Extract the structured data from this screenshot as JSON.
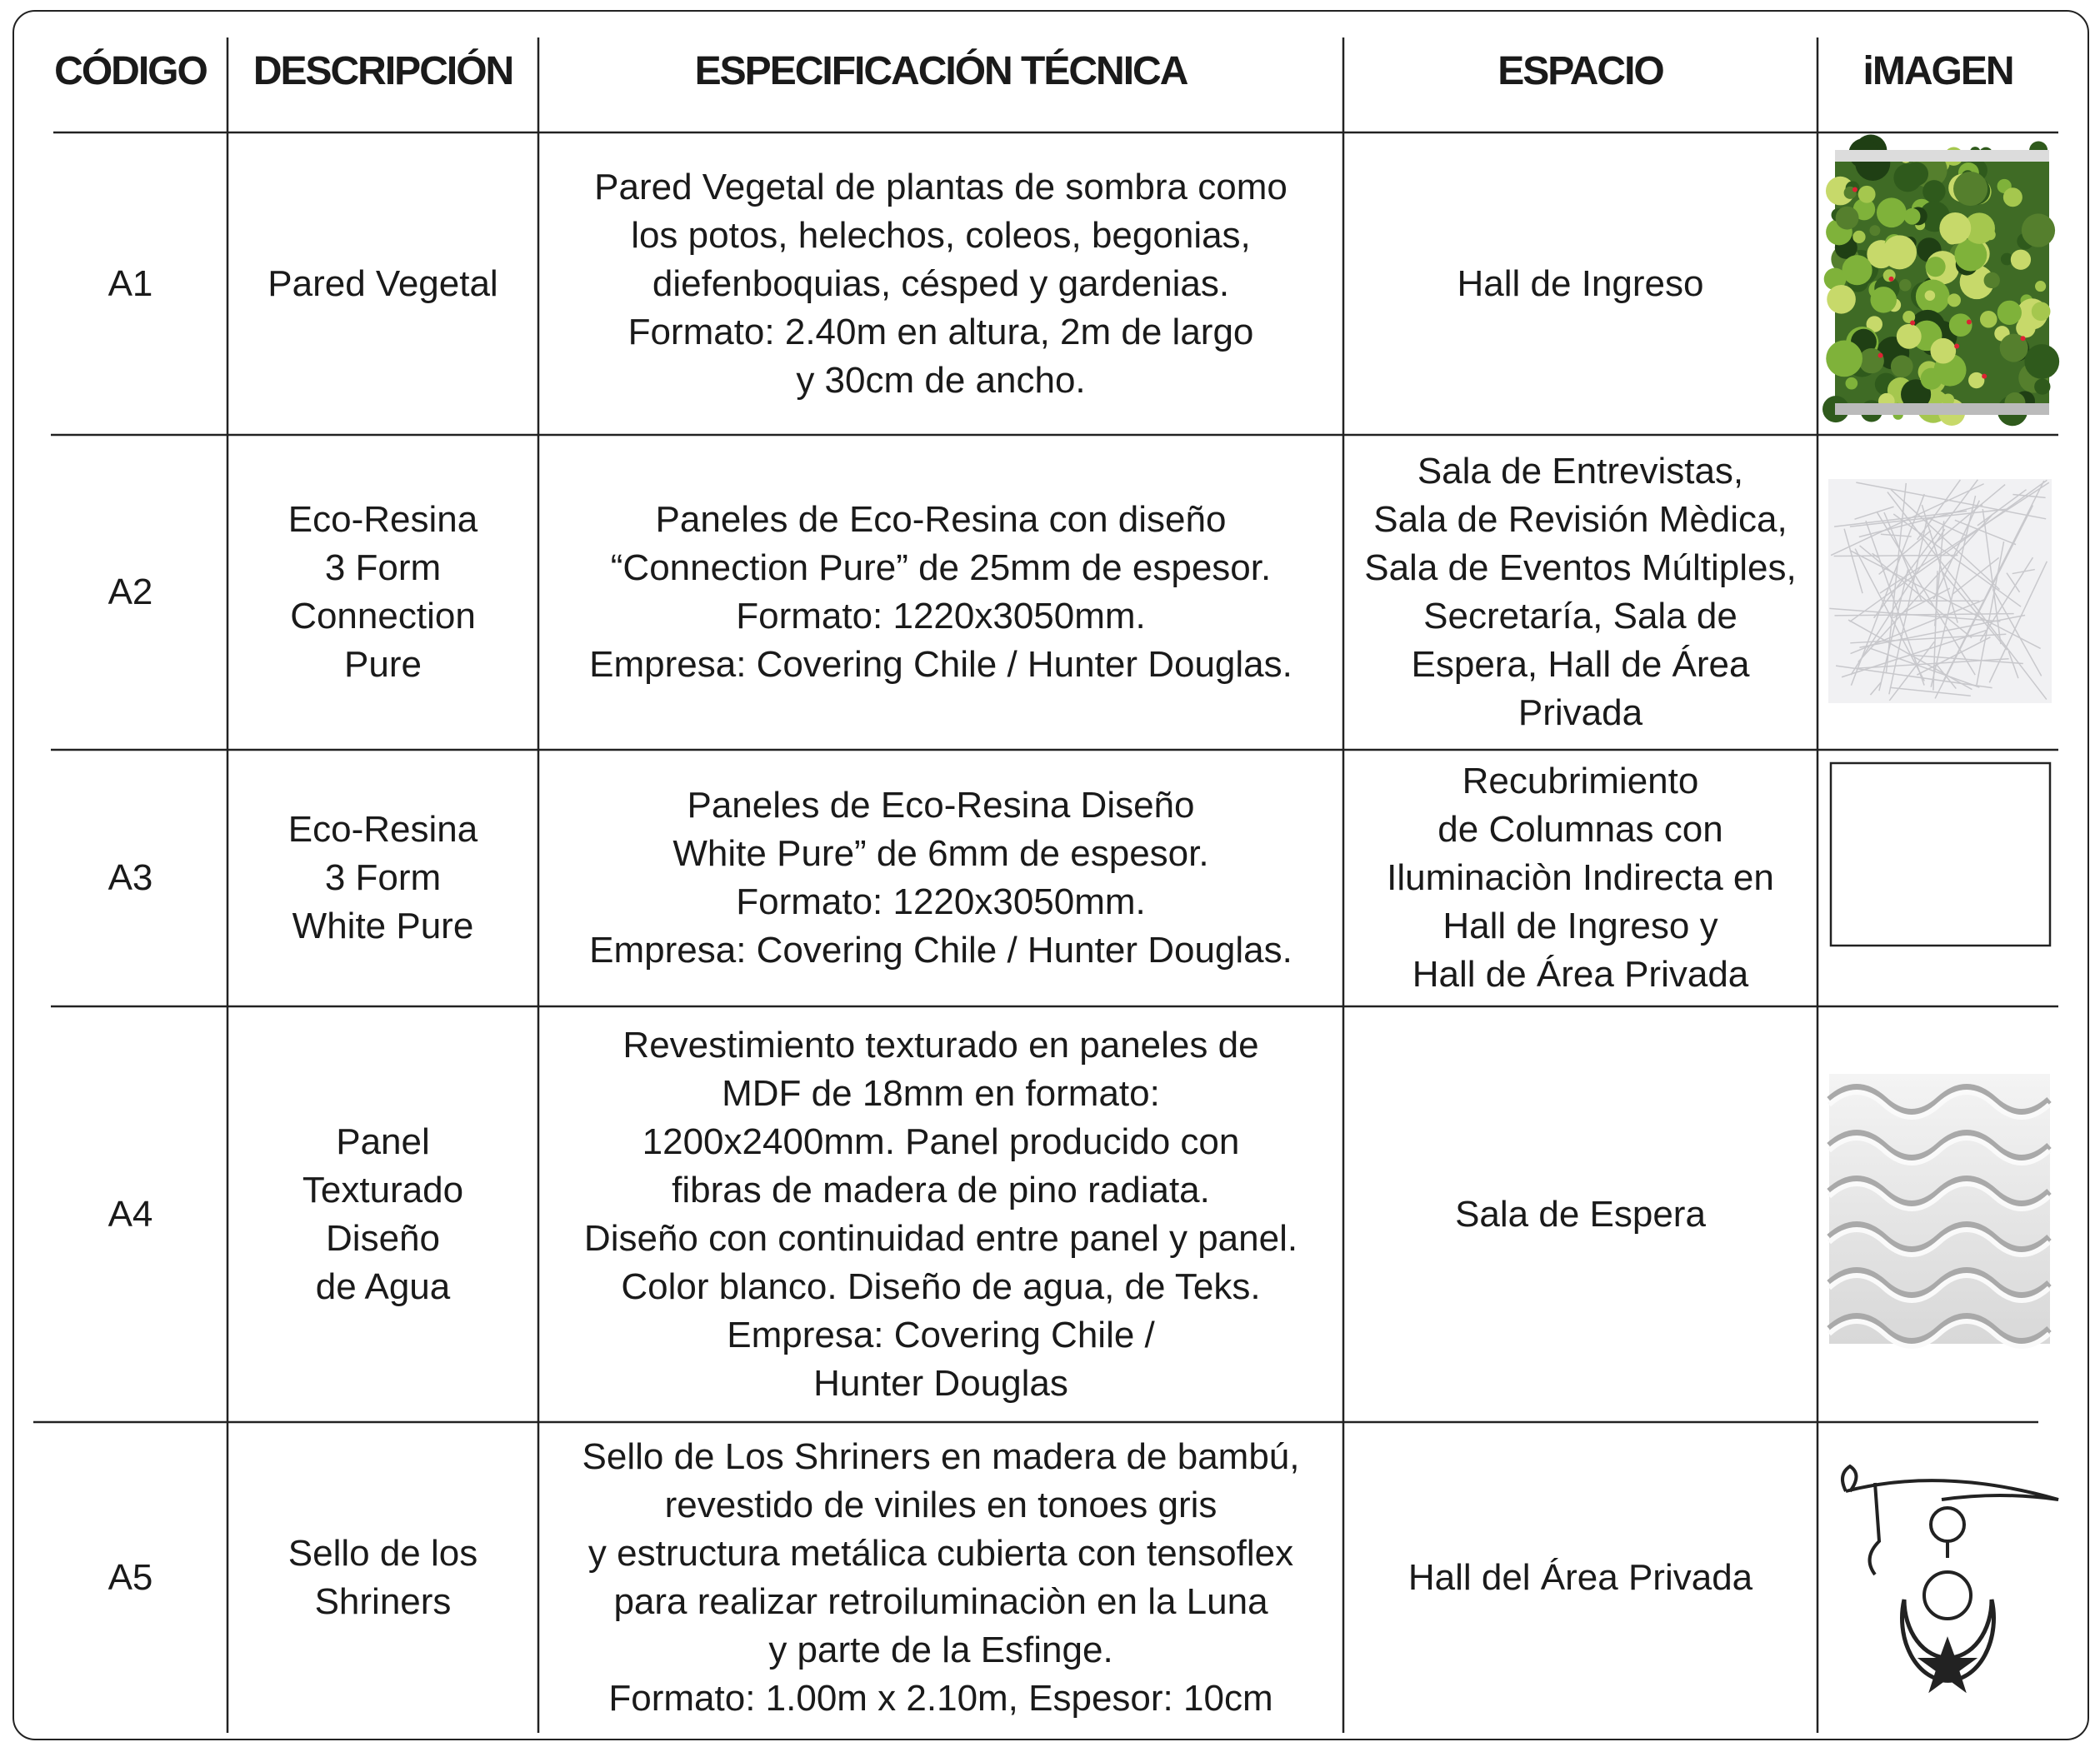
{
  "header": {
    "columns": [
      "CÓDIGO",
      "DESCRIPCIÓN",
      "ESPECIFICACIÓN TÉCNICA",
      "ESPACIO",
      "iMAGEN"
    ]
  },
  "table": {
    "rows": [
      {
        "code": "A1",
        "description": [
          "Pared Vegetal"
        ],
        "spec": [
          "Pared Vegetal de plantas de sombra como",
          "los potos, helechos, coleos, begonias,",
          "diefenboquias, césped y gardenias.",
          "Formato: 2.40m  en altura, 2m de largo",
          "y 30cm de ancho."
        ],
        "space": [
          "Hall de Ingreso"
        ]
      },
      {
        "code": "A2",
        "description": [
          "Eco-Resina",
          "3 Form",
          "Connection",
          "Pure"
        ],
        "spec": [
          "Paneles de Eco-Resina con diseño",
          "“Connection Pure” de 25mm de espesor.",
          "Formato: 1220x3050mm.",
          "Empresa: Covering Chile / Hunter Douglas."
        ],
        "space": [
          "Sala de Entrevistas,",
          "Sala de Revisión Mèdica,",
          "Sala de Eventos Múltiples,",
          "Secretaría, Sala de",
          "Espera, Hall de Área",
          "Privada"
        ]
      },
      {
        "code": "A3",
        "description": [
          "Eco-Resina",
          "3 Form",
          "White Pure"
        ],
        "spec": [
          "Paneles de Eco-Resina Diseño",
          "White Pure” de 6mm de espesor.",
          "Formato: 1220x3050mm.",
          "Empresa: Covering Chile / Hunter Douglas."
        ],
        "space": [
          "Recubrimiento",
          "de Columnas con",
          "Iluminaciòn Indirecta en",
          "Hall de Ingreso y",
          "Hall de Área Privada"
        ]
      },
      {
        "code": "A4",
        "description": [
          "Panel",
          "Texturado",
          "Diseño",
          "de Agua"
        ],
        "spec": [
          "Revestimiento texturado en paneles de",
          "MDF de 18mm en formato:",
          "1200x2400mm. Panel producido con",
          "fibras de madera de pino radiata.",
          "Diseño con continuidad entre panel y panel.",
          "Color blanco. Diseño de agua, de Teks.",
          "Empresa: Covering Chile /",
          "Hunter Douglas"
        ],
        "space": [
          "Sala de Espera"
        ]
      },
      {
        "code": "A5",
        "description": [
          "Sello de los",
          "Shriners"
        ],
        "spec": [
          "Sello de Los Shriners en madera de bambú,",
          "revestido de viniles en tonoes gris",
          "y estructura metálica cubierta con tensoflex",
          "para realizar retroiluminaciòn en la Luna",
          "y parte de la Esfinge.",
          "Formato: 1.00m x 2.10m, Espesor: 10cm"
        ],
        "space": [
          "Hall del Área Privada"
        ]
      }
    ]
  }
}
